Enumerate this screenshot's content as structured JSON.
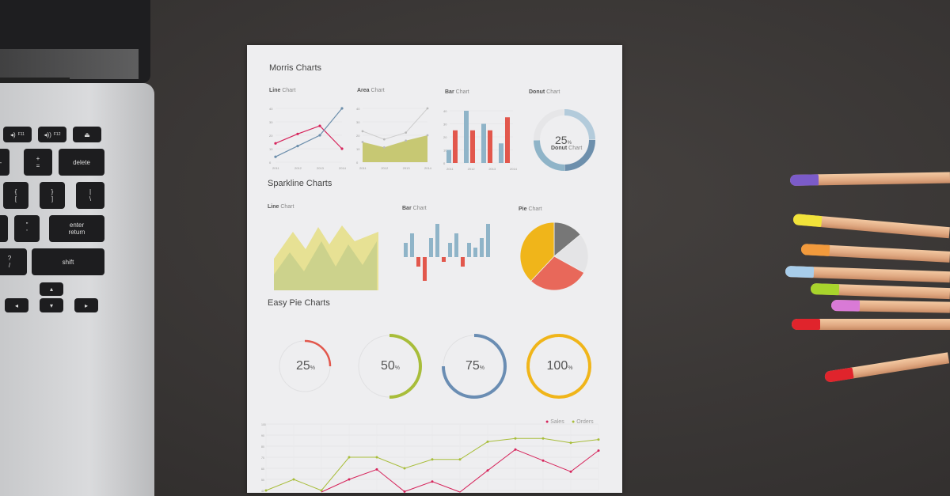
{
  "laptop": {
    "keys": {
      "f11": "F11",
      "f12": "F12",
      "delete": "delete",
      "plus": "+",
      "equals": "=",
      "minus": "-",
      "lbrace": "{",
      "lbracket": "[",
      "rbrace": "}",
      "rbracket": "]",
      "pipe": "|",
      "backslash": "\\",
      "quote": "\"",
      "apos": "'",
      "enter": "enter",
      "return": "return",
      "question": "?",
      "slash": "/",
      "shift": "shift"
    }
  },
  "paper": {
    "morris": {
      "title": "Morris Charts",
      "line": {
        "bold": "Line",
        "rest": " Chart",
        "yticks": [
          "40",
          "30",
          "20",
          "10",
          "0"
        ],
        "xticks": [
          "2011",
          "2012",
          "2013",
          "2014"
        ],
        "series": [
          [
            14,
            21,
            27,
            10
          ],
          [
            4,
            12,
            20,
            40
          ]
        ]
      },
      "area": {
        "bold": "Area",
        "rest": " Chart",
        "yticks": [
          "40",
          "30",
          "20",
          "10",
          "0"
        ],
        "xticks": [
          "2011",
          "2012",
          "2013",
          "2014"
        ],
        "series": [
          [
            23,
            17,
            22,
            40
          ],
          [
            15,
            11,
            16,
            20
          ]
        ]
      },
      "bar": {
        "bold": "Bar",
        "rest": " Chart",
        "yticks": [
          "40",
          "30",
          "20",
          "10",
          "0"
        ],
        "xticks": [
          "2011",
          "2012",
          "2013",
          "2014"
        ],
        "blue": [
          10,
          40,
          30,
          15
        ],
        "red": [
          25,
          25,
          25,
          35
        ]
      },
      "donut": {
        "bold": "Donut",
        "rest": " Chart",
        "value": "25",
        "unit": "%",
        "label_bold": "Donut",
        "label_rest": " Chart"
      }
    },
    "sparkline": {
      "title": "Sparkline Charts",
      "line": {
        "bold": "Line",
        "rest": " Chart"
      },
      "bar": {
        "bold": "Bar",
        "rest": " Chart",
        "values": [
          3,
          5,
          -2,
          -5,
          4,
          7,
          -1,
          3,
          5,
          -2,
          3,
          2,
          4,
          7
        ]
      },
      "pie": {
        "bold": "Pie",
        "rest": " Chart"
      }
    },
    "easypie": {
      "title": "Easy Pie Charts",
      "items": [
        {
          "value": "25",
          "unit": "%",
          "pct": 25,
          "color": "#e2574c"
        },
        {
          "value": "50",
          "unit": "%",
          "pct": 50,
          "color": "#a8bd3a"
        },
        {
          "value": "75",
          "unit": "%",
          "pct": 75,
          "color": "#6a8db3"
        },
        {
          "value": "100",
          "unit": "%",
          "pct": 100,
          "color": "#f0b51a"
        }
      ]
    },
    "bottom": {
      "legend": [
        {
          "name": "Sales",
          "color": "#d6245b"
        },
        {
          "name": "Orders",
          "color": "#a8bd3a"
        }
      ],
      "yticks": [
        "100",
        "90",
        "80",
        "70",
        "60",
        "50",
        "40"
      ],
      "orders": [
        40,
        50,
        40,
        70,
        70,
        60,
        68,
        68,
        84,
        87,
        87,
        83,
        86
      ],
      "sales": [
        null,
        null,
        30,
        50,
        59,
        39,
        48,
        38,
        58,
        77,
        67,
        57,
        76
      ]
    }
  },
  "colors": {
    "blue": "#8fb4c8",
    "red": "#e2574c",
    "olive": "#c7c873",
    "pink": "#d6245b"
  }
}
